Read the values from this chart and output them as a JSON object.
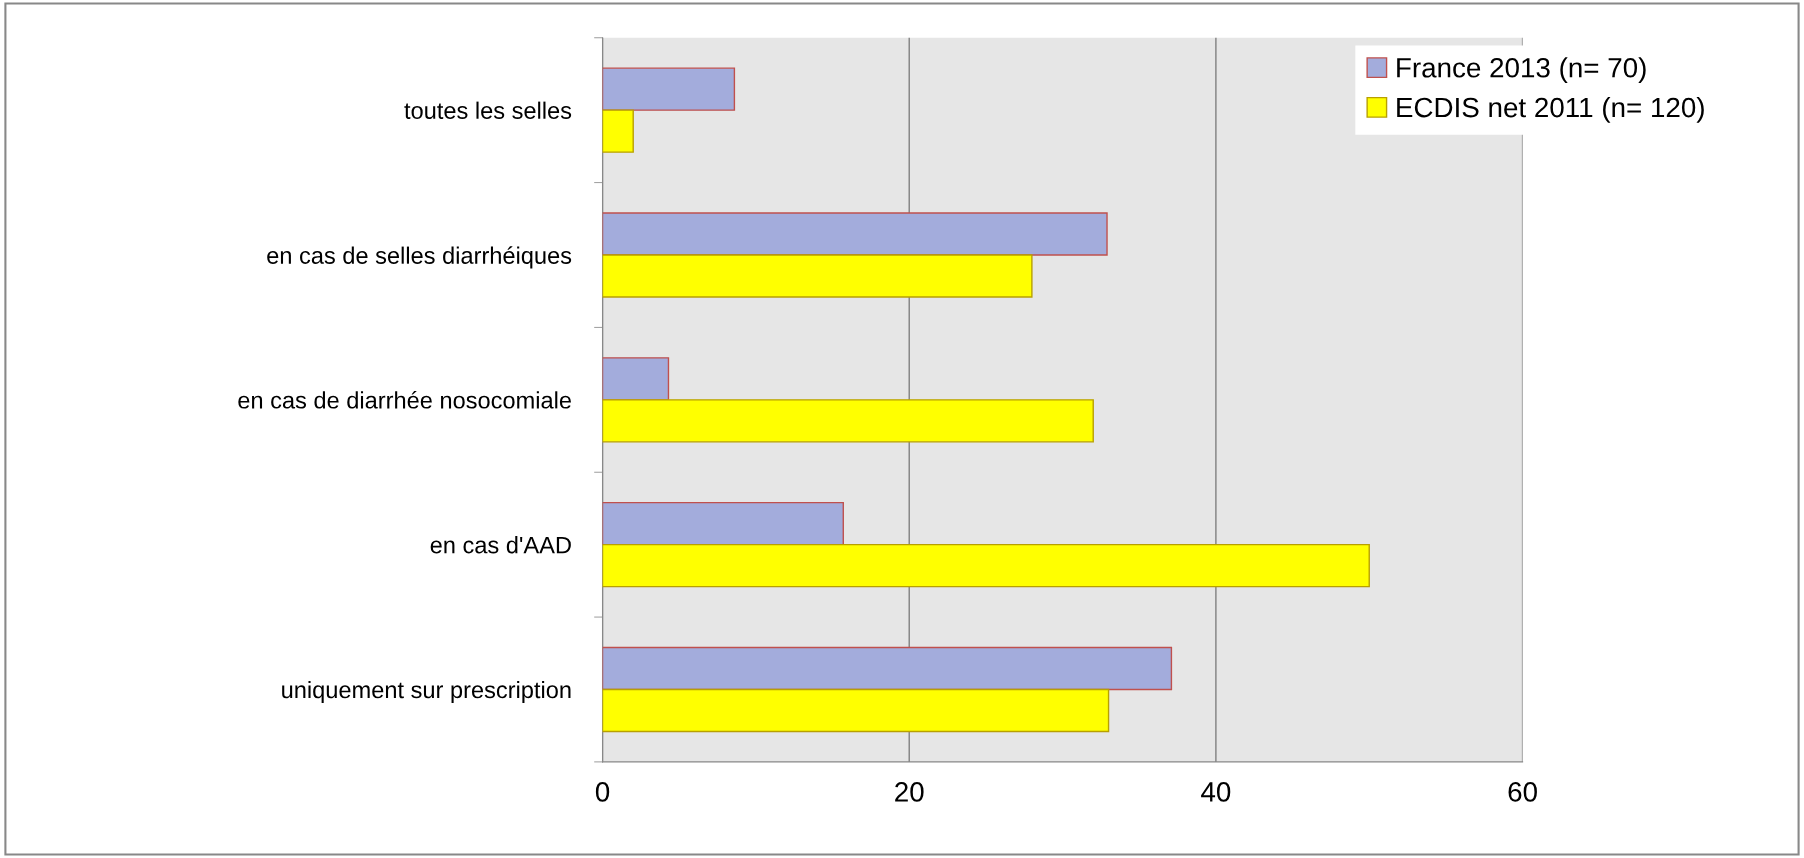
{
  "chart_data": {
    "type": "bar",
    "orientation": "horizontal",
    "categories": [
      "toutes les selles",
      "en cas de selles diarrhéiques",
      "en cas de diarrhée nosocomiale",
      "en cas d'AAD",
      "uniquement sur prescription"
    ],
    "series": [
      {
        "name": "France 2013 (n= 70)",
        "color": "#a3acdc",
        "values": [
          8.6,
          32.9,
          4.3,
          15.7,
          37.1
        ]
      },
      {
        "name": "ECDIS net 2011 (n= 120)",
        "color": "#ffff00",
        "values": [
          2.0,
          28.0,
          32.0,
          50.0,
          33.0
        ]
      }
    ],
    "xlim": [
      0,
      60
    ],
    "xticks": [
      0,
      20,
      40,
      60
    ],
    "grid": "x",
    "legend": "top right"
  }
}
